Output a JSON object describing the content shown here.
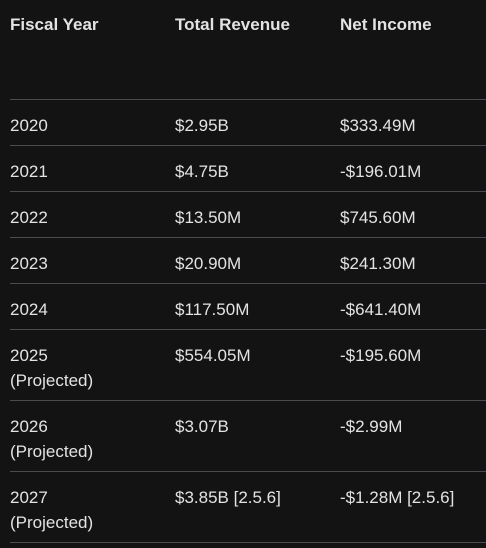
{
  "table": {
    "headers": [
      "Fiscal Year",
      "Total Revenue",
      "Net Income"
    ],
    "rows": [
      {
        "year": "2020",
        "projected": "",
        "revenue": "$2.95B",
        "net_income": "$333.49M"
      },
      {
        "year": "2021",
        "projected": "",
        "revenue": "$4.75B",
        "net_income": "-$196.01M"
      },
      {
        "year": "2022",
        "projected": "",
        "revenue": "$13.50M",
        "net_income": "$745.60M"
      },
      {
        "year": "2023",
        "projected": "",
        "revenue": "$20.90M",
        "net_income": "$241.30M"
      },
      {
        "year": "2024",
        "projected": "",
        "revenue": "$117.50M",
        "net_income": "-$641.40M"
      },
      {
        "year": "2025",
        "projected": "(Projected)",
        "revenue": "$554.05M",
        "net_income": "-$195.60M"
      },
      {
        "year": "2026",
        "projected": "(Projected)",
        "revenue": "$3.07B",
        "net_income": "-$2.99M"
      },
      {
        "year": "2027",
        "projected": "(Projected)",
        "revenue": "$3.85B [2.5.6]",
        "net_income": "-$1.28M [2.5.6]"
      }
    ]
  },
  "colors": {
    "background": "#131314",
    "text": "#e3e3e3",
    "divider": "#4a4c50"
  }
}
